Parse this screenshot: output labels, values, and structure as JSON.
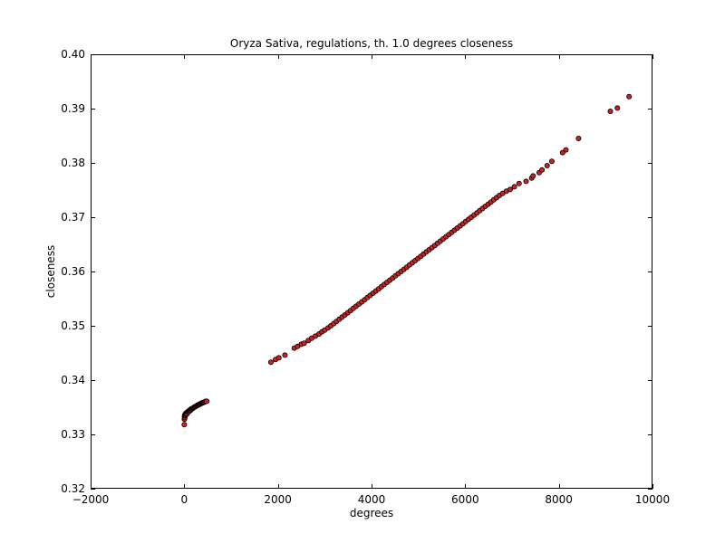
{
  "chart_data": {
    "type": "scatter",
    "title": "Oryza Sativa, regulations, th. 1.0 degrees closeness",
    "xlabel": "degrees",
    "ylabel": "closeness",
    "xlim": [
      -2000,
      10000
    ],
    "ylim": [
      0.32,
      0.4
    ],
    "xticks": [
      -2000,
      0,
      2000,
      4000,
      6000,
      8000,
      10000
    ],
    "xtick_labels": [
      "−2000",
      "0",
      "2000",
      "4000",
      "6000",
      "8000",
      "10000"
    ],
    "yticks": [
      0.32,
      0.33,
      0.34,
      0.35,
      0.36,
      0.37,
      0.38,
      0.39,
      0.4
    ],
    "ytick_labels": [
      "0.32",
      "0.33",
      "0.34",
      "0.35",
      "0.36",
      "0.37",
      "0.38",
      "0.39",
      "0.40"
    ],
    "grid": false,
    "marker_color": "#cc2222",
    "marker_edge_color": "#000000",
    "series": [
      {
        "points": [
          [
            1,
            0.3318
          ],
          [
            3,
            0.3328
          ],
          [
            5,
            0.3332
          ],
          [
            8,
            0.3335
          ],
          [
            12,
            0.3331
          ],
          [
            15,
            0.3336
          ],
          [
            20,
            0.3334
          ],
          [
            25,
            0.3338
          ],
          [
            30,
            0.3336
          ],
          [
            35,
            0.3339
          ],
          [
            40,
            0.3337
          ],
          [
            50,
            0.334
          ],
          [
            60,
            0.3338
          ],
          [
            70,
            0.3341
          ],
          [
            80,
            0.3342
          ],
          [
            90,
            0.3343
          ],
          [
            100,
            0.3342
          ],
          [
            110,
            0.3344
          ],
          [
            120,
            0.3345
          ],
          [
            130,
            0.3344
          ],
          [
            140,
            0.3346
          ],
          [
            150,
            0.3347
          ],
          [
            165,
            0.3347
          ],
          [
            180,
            0.3348
          ],
          [
            195,
            0.3349
          ],
          [
            210,
            0.335
          ],
          [
            225,
            0.3351
          ],
          [
            240,
            0.3351
          ],
          [
            255,
            0.3352
          ],
          [
            270,
            0.3353
          ],
          [
            285,
            0.3354
          ],
          [
            300,
            0.3354
          ],
          [
            315,
            0.3355
          ],
          [
            330,
            0.3356
          ],
          [
            345,
            0.3356
          ],
          [
            360,
            0.3357
          ],
          [
            375,
            0.3358
          ],
          [
            390,
            0.3358
          ],
          [
            405,
            0.3359
          ],
          [
            420,
            0.3359
          ],
          [
            440,
            0.336
          ],
          [
            460,
            0.3361
          ],
          [
            480,
            0.3361
          ],
          [
            1850,
            0.3433
          ],
          [
            1950,
            0.3438
          ],
          [
            2020,
            0.3441
          ],
          [
            2150,
            0.3446
          ],
          [
            2350,
            0.3459
          ],
          [
            2420,
            0.3462
          ],
          [
            2500,
            0.3466
          ],
          [
            2560,
            0.3468
          ],
          [
            2650,
            0.3473
          ],
          [
            2720,
            0.3477
          ],
          [
            2800,
            0.3481
          ],
          [
            2880,
            0.3485
          ],
          [
            2940,
            0.3489
          ],
          [
            3000,
            0.3492
          ],
          [
            3070,
            0.3496
          ],
          [
            3130,
            0.35
          ],
          [
            3190,
            0.3504
          ],
          [
            3250,
            0.3508
          ],
          [
            3310,
            0.3512
          ],
          [
            3370,
            0.3516
          ],
          [
            3430,
            0.352
          ],
          [
            3490,
            0.3524
          ],
          [
            3550,
            0.3528
          ],
          [
            3610,
            0.3532
          ],
          [
            3670,
            0.3536
          ],
          [
            3730,
            0.354
          ],
          [
            3790,
            0.3544
          ],
          [
            3850,
            0.3548
          ],
          [
            3910,
            0.3552
          ],
          [
            3970,
            0.3556
          ],
          [
            4030,
            0.356
          ],
          [
            4090,
            0.3564
          ],
          [
            4150,
            0.3568
          ],
          [
            4210,
            0.3572
          ],
          [
            4270,
            0.3576
          ],
          [
            4330,
            0.358
          ],
          [
            4390,
            0.3584
          ],
          [
            4450,
            0.3588
          ],
          [
            4510,
            0.3592
          ],
          [
            4570,
            0.3596
          ],
          [
            4630,
            0.36
          ],
          [
            4690,
            0.3604
          ],
          [
            4750,
            0.3608
          ],
          [
            4810,
            0.3612
          ],
          [
            4870,
            0.3616
          ],
          [
            4930,
            0.362
          ],
          [
            4990,
            0.3624
          ],
          [
            5050,
            0.3628
          ],
          [
            5110,
            0.3632
          ],
          [
            5170,
            0.3636
          ],
          [
            5230,
            0.364
          ],
          [
            5290,
            0.3644
          ],
          [
            5350,
            0.3648
          ],
          [
            5410,
            0.3652
          ],
          [
            5470,
            0.3656
          ],
          [
            5530,
            0.366
          ],
          [
            5590,
            0.3664
          ],
          [
            5650,
            0.3668
          ],
          [
            5710,
            0.3672
          ],
          [
            5770,
            0.3676
          ],
          [
            5830,
            0.368
          ],
          [
            5890,
            0.3684
          ],
          [
            5950,
            0.3688
          ],
          [
            6010,
            0.3692
          ],
          [
            6070,
            0.3696
          ],
          [
            6130,
            0.37
          ],
          [
            6190,
            0.3704
          ],
          [
            6250,
            0.3708
          ],
          [
            6310,
            0.3712
          ],
          [
            6370,
            0.3716
          ],
          [
            6430,
            0.372
          ],
          [
            6490,
            0.3724
          ],
          [
            6550,
            0.3728
          ],
          [
            6610,
            0.3732
          ],
          [
            6670,
            0.3736
          ],
          [
            6730,
            0.374
          ],
          [
            6800,
            0.3744
          ],
          [
            6880,
            0.3748
          ],
          [
            6960,
            0.3751
          ],
          [
            7050,
            0.3756
          ],
          [
            7150,
            0.3762
          ],
          [
            7300,
            0.3766
          ],
          [
            7420,
            0.3772
          ],
          [
            7450,
            0.3776
          ],
          [
            7580,
            0.3782
          ],
          [
            7640,
            0.3787
          ],
          [
            7750,
            0.3795
          ],
          [
            7850,
            0.3803
          ],
          [
            8080,
            0.3819
          ],
          [
            8150,
            0.3824
          ],
          [
            8420,
            0.3845
          ],
          [
            9100,
            0.3895
          ],
          [
            9250,
            0.3901
          ],
          [
            9500,
            0.3922
          ]
        ]
      }
    ]
  }
}
